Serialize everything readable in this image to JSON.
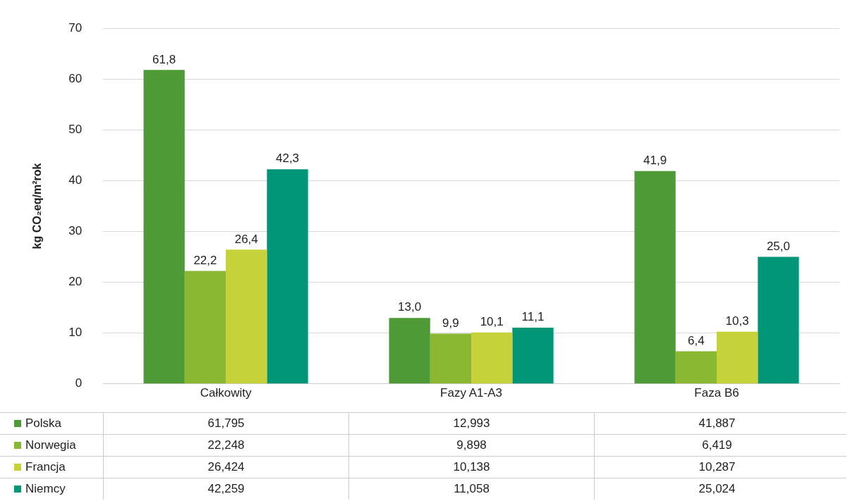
{
  "chart_data": {
    "type": "bar",
    "ylabel": "kg CO₂eq/m²rok",
    "categories": [
      "Całkowity",
      "Fazy A1-A3",
      "Faza B6"
    ],
    "series": [
      {
        "name": "Polska",
        "color": "#4e9a36",
        "values": [
          61.795,
          12.993,
          41.887
        ],
        "value_labels": [
          "61,8",
          "13,0",
          "41,9"
        ]
      },
      {
        "name": "Norwegia",
        "color": "#8ab833",
        "values": [
          22.248,
          9.898,
          6.419
        ],
        "value_labels": [
          "22,2",
          "9,9",
          "6,4"
        ]
      },
      {
        "name": "Francja",
        "color": "#c5d23a",
        "values": [
          26.424,
          10.138,
          10.287
        ],
        "value_labels": [
          "26,4",
          "10,1",
          "10,3"
        ]
      },
      {
        "name": "Niemcy",
        "color": "#009677",
        "values": [
          42.259,
          11.058,
          25.024
        ],
        "value_labels": [
          "42,3",
          "11,1",
          "25,0"
        ]
      }
    ],
    "annotations": [
      "61,795",
      "12,993",
      "41,887",
      "22,248",
      "9,898",
      "6,419",
      "26,424",
      "10,138",
      "10,287",
      "42,259",
      "11,058",
      "25,024"
    ],
    "ylim": [
      0,
      70
    ],
    "yticks": [
      0,
      10,
      20,
      30,
      40,
      50,
      60,
      70
    ],
    "grid": "y",
    "legend": "bottom",
    "data_labels": true
  }
}
